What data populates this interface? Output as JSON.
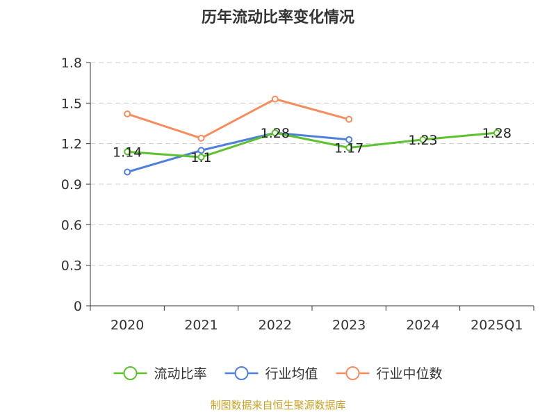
{
  "chart_data": {
    "type": "line",
    "title": "历年流动比率变化情况",
    "categories": [
      "2020",
      "2021",
      "2022",
      "2023",
      "2024",
      "2025Q1"
    ],
    "ylim": [
      0,
      1.8
    ],
    "yticks": [
      "0",
      "0.3",
      "0.6",
      "0.9",
      "1.2",
      "1.5",
      "1.8"
    ],
    "grid": true,
    "legend_position": "bottom",
    "series": [
      {
        "name": "流动比率",
        "color": "#5cc22e",
        "values": [
          1.14,
          1.1,
          1.28,
          1.17,
          1.23,
          1.28
        ],
        "labels": [
          "1.14",
          "1.1",
          "1.28",
          "1.17",
          "1.23",
          "1.28"
        ],
        "show_labels": true
      },
      {
        "name": "行业均值",
        "color": "#4f7fdc",
        "values": [
          0.99,
          1.15,
          1.28,
          1.23,
          null,
          null
        ],
        "show_labels": false
      },
      {
        "name": "行业中位数",
        "color": "#f78d5e",
        "values": [
          1.42,
          1.24,
          1.53,
          1.38,
          null,
          null
        ],
        "show_labels": false
      }
    ],
    "source": "制图数据来自恒生聚源数据库"
  }
}
